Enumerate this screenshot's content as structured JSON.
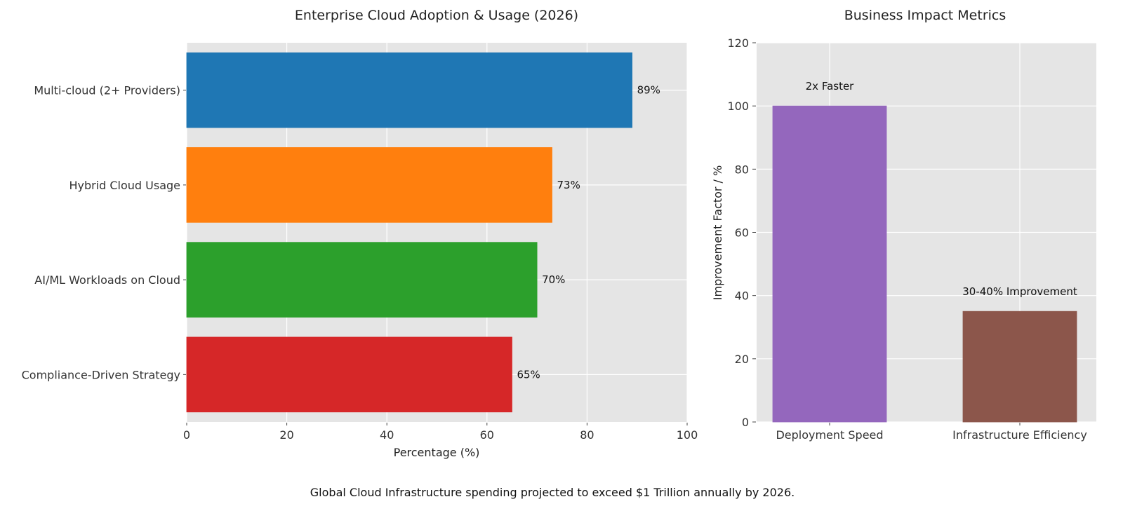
{
  "caption": "Global Cloud Infrastructure spending projected to exceed $1 Trillion annually by 2026.",
  "chart_data": [
    {
      "type": "bar",
      "orientation": "horizontal",
      "title": "Enterprise Cloud Adoption & Usage (2026)",
      "xlabel": "Percentage (%)",
      "ylabel": "",
      "xlim": [
        0,
        100
      ],
      "xticks": [
        0,
        20,
        40,
        60,
        80,
        100
      ],
      "grid": true,
      "categories": [
        "Multi-cloud (2+ Providers)",
        "Hybrid Cloud Usage",
        "AI/ML Workloads on Cloud",
        "Compliance-Driven Strategy"
      ],
      "values": [
        89,
        73,
        70,
        65
      ],
      "data_labels": [
        "89%",
        "73%",
        "70%",
        "65%"
      ],
      "colors": [
        "#1f77b4",
        "#ff7f0e",
        "#2ca02c",
        "#d62728"
      ]
    },
    {
      "type": "bar",
      "orientation": "vertical",
      "title": "Business Impact Metrics",
      "xlabel": "",
      "ylabel": "Improvement Factor / %",
      "ylim": [
        0,
        120
      ],
      "yticks": [
        0,
        20,
        40,
        60,
        80,
        100,
        120
      ],
      "grid": true,
      "categories": [
        "Deployment Speed",
        "Infrastructure Efficiency"
      ],
      "values": [
        100,
        35
      ],
      "data_labels": [
        "2x Faster",
        "30-40% Improvement"
      ],
      "colors": [
        "#9467bd",
        "#8c564b"
      ]
    }
  ],
  "style": {
    "plot_bg": "#e5e5e5",
    "grid_color": "#ffffff"
  }
}
